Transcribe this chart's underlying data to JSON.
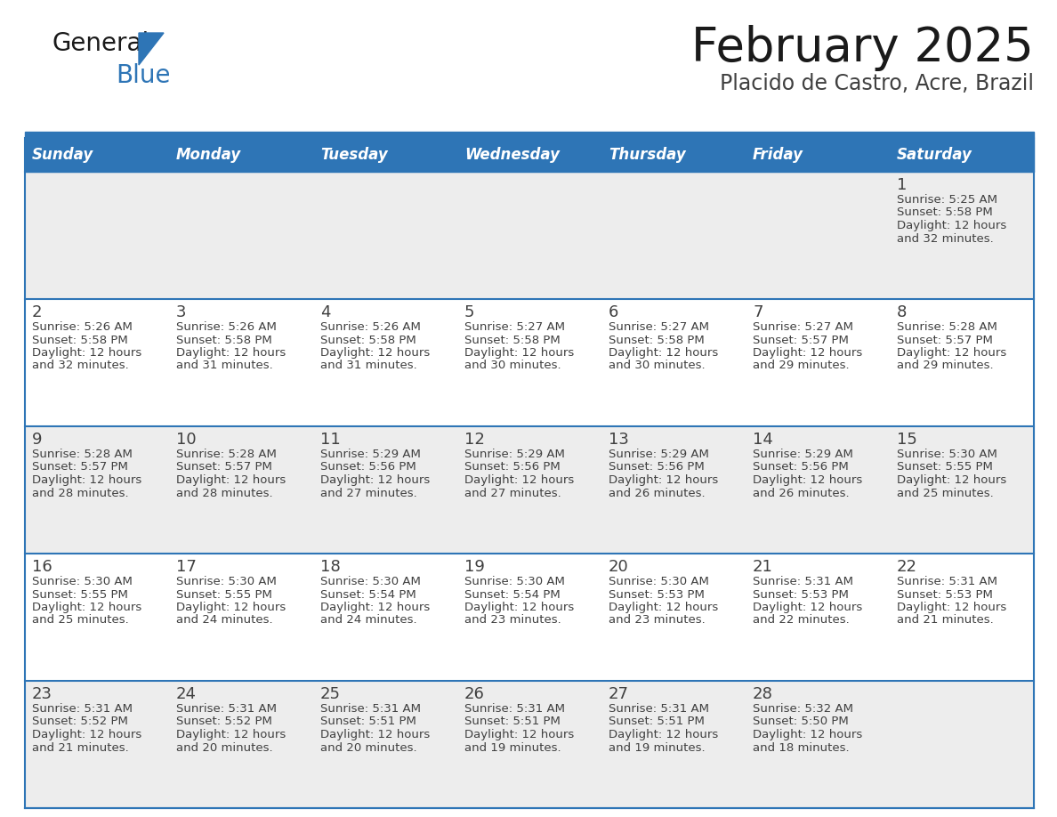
{
  "title": "February 2025",
  "subtitle": "Placido de Castro, Acre, Brazil",
  "days_of_week": [
    "Sunday",
    "Monday",
    "Tuesday",
    "Wednesday",
    "Thursday",
    "Friday",
    "Saturday"
  ],
  "header_bg": "#2E75B6",
  "header_text": "#FFFFFF",
  "row_bg_odd": "#EDEDED",
  "row_bg_even": "#FFFFFF",
  "cell_text_color": "#404040",
  "day_num_color": "#404040",
  "separator_color": "#2E75B6",
  "title_color": "#1A1A1A",
  "subtitle_color": "#404040",
  "logo_general_color": "#1A1A1A",
  "logo_blue_color": "#2E75B6",
  "calendar_data": [
    [
      {
        "day": null,
        "sunrise": null,
        "sunset": null,
        "daylight_line1": null,
        "daylight_line2": null
      },
      {
        "day": null,
        "sunrise": null,
        "sunset": null,
        "daylight_line1": null,
        "daylight_line2": null
      },
      {
        "day": null,
        "sunrise": null,
        "sunset": null,
        "daylight_line1": null,
        "daylight_line2": null
      },
      {
        "day": null,
        "sunrise": null,
        "sunset": null,
        "daylight_line1": null,
        "daylight_line2": null
      },
      {
        "day": null,
        "sunrise": null,
        "sunset": null,
        "daylight_line1": null,
        "daylight_line2": null
      },
      {
        "day": null,
        "sunrise": null,
        "sunset": null,
        "daylight_line1": null,
        "daylight_line2": null
      },
      {
        "day": "1",
        "sunrise": "Sunrise: 5:25 AM",
        "sunset": "Sunset: 5:58 PM",
        "daylight_line1": "Daylight: 12 hours",
        "daylight_line2": "and 32 minutes."
      }
    ],
    [
      {
        "day": "2",
        "sunrise": "Sunrise: 5:26 AM",
        "sunset": "Sunset: 5:58 PM",
        "daylight_line1": "Daylight: 12 hours",
        "daylight_line2": "and 32 minutes."
      },
      {
        "day": "3",
        "sunrise": "Sunrise: 5:26 AM",
        "sunset": "Sunset: 5:58 PM",
        "daylight_line1": "Daylight: 12 hours",
        "daylight_line2": "and 31 minutes."
      },
      {
        "day": "4",
        "sunrise": "Sunrise: 5:26 AM",
        "sunset": "Sunset: 5:58 PM",
        "daylight_line1": "Daylight: 12 hours",
        "daylight_line2": "and 31 minutes."
      },
      {
        "day": "5",
        "sunrise": "Sunrise: 5:27 AM",
        "sunset": "Sunset: 5:58 PM",
        "daylight_line1": "Daylight: 12 hours",
        "daylight_line2": "and 30 minutes."
      },
      {
        "day": "6",
        "sunrise": "Sunrise: 5:27 AM",
        "sunset": "Sunset: 5:58 PM",
        "daylight_line1": "Daylight: 12 hours",
        "daylight_line2": "and 30 minutes."
      },
      {
        "day": "7",
        "sunrise": "Sunrise: 5:27 AM",
        "sunset": "Sunset: 5:57 PM",
        "daylight_line1": "Daylight: 12 hours",
        "daylight_line2": "and 29 minutes."
      },
      {
        "day": "8",
        "sunrise": "Sunrise: 5:28 AM",
        "sunset": "Sunset: 5:57 PM",
        "daylight_line1": "Daylight: 12 hours",
        "daylight_line2": "and 29 minutes."
      }
    ],
    [
      {
        "day": "9",
        "sunrise": "Sunrise: 5:28 AM",
        "sunset": "Sunset: 5:57 PM",
        "daylight_line1": "Daylight: 12 hours",
        "daylight_line2": "and 28 minutes."
      },
      {
        "day": "10",
        "sunrise": "Sunrise: 5:28 AM",
        "sunset": "Sunset: 5:57 PM",
        "daylight_line1": "Daylight: 12 hours",
        "daylight_line2": "and 28 minutes."
      },
      {
        "day": "11",
        "sunrise": "Sunrise: 5:29 AM",
        "sunset": "Sunset: 5:56 PM",
        "daylight_line1": "Daylight: 12 hours",
        "daylight_line2": "and 27 minutes."
      },
      {
        "day": "12",
        "sunrise": "Sunrise: 5:29 AM",
        "sunset": "Sunset: 5:56 PM",
        "daylight_line1": "Daylight: 12 hours",
        "daylight_line2": "and 27 minutes."
      },
      {
        "day": "13",
        "sunrise": "Sunrise: 5:29 AM",
        "sunset": "Sunset: 5:56 PM",
        "daylight_line1": "Daylight: 12 hours",
        "daylight_line2": "and 26 minutes."
      },
      {
        "day": "14",
        "sunrise": "Sunrise: 5:29 AM",
        "sunset": "Sunset: 5:56 PM",
        "daylight_line1": "Daylight: 12 hours",
        "daylight_line2": "and 26 minutes."
      },
      {
        "day": "15",
        "sunrise": "Sunrise: 5:30 AM",
        "sunset": "Sunset: 5:55 PM",
        "daylight_line1": "Daylight: 12 hours",
        "daylight_line2": "and 25 minutes."
      }
    ],
    [
      {
        "day": "16",
        "sunrise": "Sunrise: 5:30 AM",
        "sunset": "Sunset: 5:55 PM",
        "daylight_line1": "Daylight: 12 hours",
        "daylight_line2": "and 25 minutes."
      },
      {
        "day": "17",
        "sunrise": "Sunrise: 5:30 AM",
        "sunset": "Sunset: 5:55 PM",
        "daylight_line1": "Daylight: 12 hours",
        "daylight_line2": "and 24 minutes."
      },
      {
        "day": "18",
        "sunrise": "Sunrise: 5:30 AM",
        "sunset": "Sunset: 5:54 PM",
        "daylight_line1": "Daylight: 12 hours",
        "daylight_line2": "and 24 minutes."
      },
      {
        "day": "19",
        "sunrise": "Sunrise: 5:30 AM",
        "sunset": "Sunset: 5:54 PM",
        "daylight_line1": "Daylight: 12 hours",
        "daylight_line2": "and 23 minutes."
      },
      {
        "day": "20",
        "sunrise": "Sunrise: 5:30 AM",
        "sunset": "Sunset: 5:53 PM",
        "daylight_line1": "Daylight: 12 hours",
        "daylight_line2": "and 23 minutes."
      },
      {
        "day": "21",
        "sunrise": "Sunrise: 5:31 AM",
        "sunset": "Sunset: 5:53 PM",
        "daylight_line1": "Daylight: 12 hours",
        "daylight_line2": "and 22 minutes."
      },
      {
        "day": "22",
        "sunrise": "Sunrise: 5:31 AM",
        "sunset": "Sunset: 5:53 PM",
        "daylight_line1": "Daylight: 12 hours",
        "daylight_line2": "and 21 minutes."
      }
    ],
    [
      {
        "day": "23",
        "sunrise": "Sunrise: 5:31 AM",
        "sunset": "Sunset: 5:52 PM",
        "daylight_line1": "Daylight: 12 hours",
        "daylight_line2": "and 21 minutes."
      },
      {
        "day": "24",
        "sunrise": "Sunrise: 5:31 AM",
        "sunset": "Sunset: 5:52 PM",
        "daylight_line1": "Daylight: 12 hours",
        "daylight_line2": "and 20 minutes."
      },
      {
        "day": "25",
        "sunrise": "Sunrise: 5:31 AM",
        "sunset": "Sunset: 5:51 PM",
        "daylight_line1": "Daylight: 12 hours",
        "daylight_line2": "and 20 minutes."
      },
      {
        "day": "26",
        "sunrise": "Sunrise: 5:31 AM",
        "sunset": "Sunset: 5:51 PM",
        "daylight_line1": "Daylight: 12 hours",
        "daylight_line2": "and 19 minutes."
      },
      {
        "day": "27",
        "sunrise": "Sunrise: 5:31 AM",
        "sunset": "Sunset: 5:51 PM",
        "daylight_line1": "Daylight: 12 hours",
        "daylight_line2": "and 19 minutes."
      },
      {
        "day": "28",
        "sunrise": "Sunrise: 5:32 AM",
        "sunset": "Sunset: 5:50 PM",
        "daylight_line1": "Daylight: 12 hours",
        "daylight_line2": "and 18 minutes."
      },
      {
        "day": null,
        "sunrise": null,
        "sunset": null,
        "daylight_line1": null,
        "daylight_line2": null
      }
    ]
  ]
}
